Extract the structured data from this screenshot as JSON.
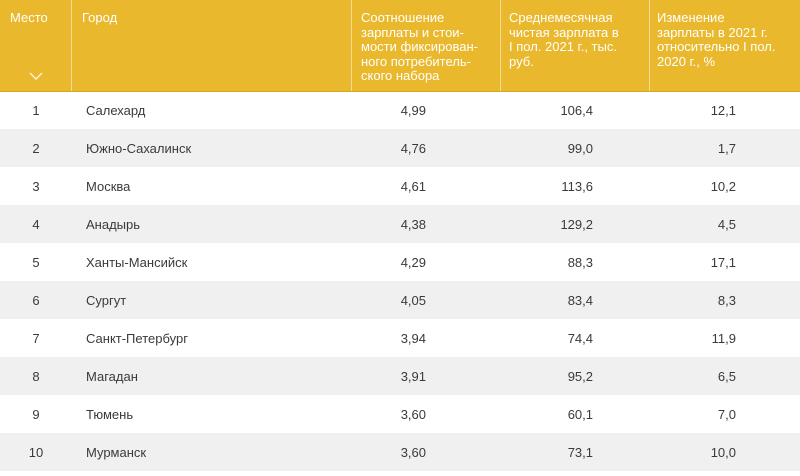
{
  "header": {
    "rank": "Место",
    "city": "Город",
    "ratio": "Соотношение\nзарплаты и стои-\nмости фиксирован-\nного потребитель-\nского набора",
    "salary": "Среднемесячная\nчистая зарплата в\nI пол. 2021 г., тыс.\nруб.",
    "change": "Изменение\nзарплаты в 2021 г.\nотносительно I пол.\n2020 г., %",
    "sort_icon": "chevron-down-icon"
  },
  "colors": {
    "header_bg": "#e9b82d",
    "header_text": "#ffffff",
    "row_alt": "#f0f0f0"
  },
  "rows": [
    {
      "rank": "1",
      "city": "Салехард",
      "ratio": "4,99",
      "salary": "106,4",
      "change": "12,1"
    },
    {
      "rank": "2",
      "city": "Южно-Сахалинск",
      "ratio": "4,76",
      "salary": "99,0",
      "change": "1,7"
    },
    {
      "rank": "3",
      "city": "Москва",
      "ratio": "4,61",
      "salary": "113,6",
      "change": "10,2"
    },
    {
      "rank": "4",
      "city": "Анадырь",
      "ratio": "4,38",
      "salary": "129,2",
      "change": "4,5"
    },
    {
      "rank": "5",
      "city": "Ханты-Мансийск",
      "ratio": "4,29",
      "salary": "88,3",
      "change": "17,1"
    },
    {
      "rank": "6",
      "city": "Сургут",
      "ratio": "4,05",
      "salary": "83,4",
      "change": "8,3"
    },
    {
      "rank": "7",
      "city": "Санкт-Петербург",
      "ratio": "3,94",
      "salary": "74,4",
      "change": "11,9"
    },
    {
      "rank": "8",
      "city": "Магадан",
      "ratio": "3,91",
      "salary": "95,2",
      "change": "6,5"
    },
    {
      "rank": "9",
      "city": "Тюмень",
      "ratio": "3,60",
      "salary": "60,1",
      "change": "7,0"
    },
    {
      "rank": "10",
      "city": "Мурманск",
      "ratio": "3,60",
      "salary": "73,1",
      "change": "10,0"
    }
  ]
}
